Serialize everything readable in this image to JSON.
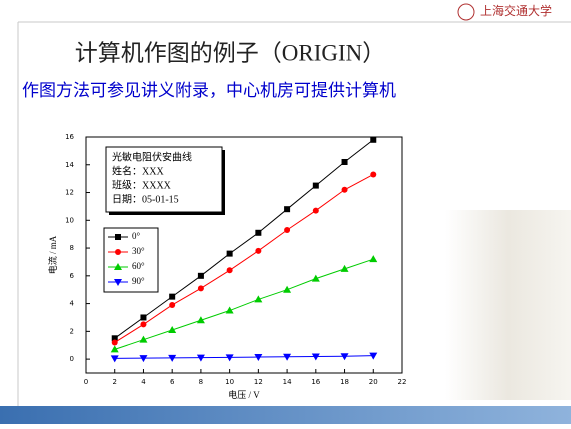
{
  "slide": {
    "title": "计算机作图的例子（ORIGIN）",
    "subtitle": "作图方法可参见讲义附录，中心机房可提供计算机",
    "logo": "上海交通大学"
  },
  "chart_data": {
    "type": "line",
    "annotations": [
      "光敏电阻伏安曲线",
      "姓名：XXX",
      "班级：XXXX",
      "日期：05-01-15"
    ],
    "x_label": "电压 / V",
    "y_label": "电流 / mA",
    "x": [
      2,
      4,
      6,
      8,
      10,
      12,
      14,
      16,
      18,
      20
    ],
    "series": [
      {
        "name": "0°",
        "color": "#000000",
        "marker": "square",
        "values": [
          1.5,
          3.0,
          4.5,
          6.0,
          7.6,
          9.1,
          10.8,
          12.5,
          14.2,
          15.8
        ]
      },
      {
        "name": "30°",
        "color": "#ff0000",
        "marker": "circle",
        "values": [
          1.2,
          2.5,
          3.9,
          5.1,
          6.4,
          7.8,
          9.3,
          10.7,
          12.2,
          13.3
        ]
      },
      {
        "name": "60°",
        "color": "#00cc00",
        "marker": "triangle-up",
        "values": [
          0.7,
          1.4,
          2.1,
          2.8,
          3.5,
          4.3,
          5.0,
          5.8,
          6.5,
          7.2
        ]
      },
      {
        "name": "90°",
        "color": "#0000ff",
        "marker": "triangle-down",
        "values": [
          0.05,
          0.07,
          0.09,
          0.11,
          0.13,
          0.15,
          0.17,
          0.19,
          0.21,
          0.25
        ]
      }
    ],
    "xlim": [
      0,
      22
    ],
    "xticks": [
      0,
      2,
      4,
      6,
      8,
      10,
      12,
      14,
      16,
      18,
      20,
      22
    ],
    "ylim": [
      -1,
      16
    ],
    "yticks": [
      0,
      2,
      4,
      6,
      8,
      10,
      12,
      14,
      16
    ]
  }
}
